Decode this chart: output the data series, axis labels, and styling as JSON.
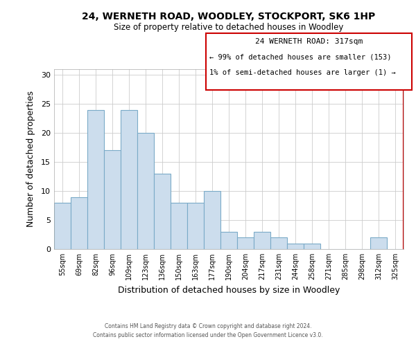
{
  "title": "24, WERNETH ROAD, WOODLEY, STOCKPORT, SK6 1HP",
  "subtitle": "Size of property relative to detached houses in Woodley",
  "xlabel": "Distribution of detached houses by size in Woodley",
  "ylabel": "Number of detached properties",
  "bar_labels": [
    "55sqm",
    "69sqm",
    "82sqm",
    "96sqm",
    "109sqm",
    "123sqm",
    "136sqm",
    "150sqm",
    "163sqm",
    "177sqm",
    "190sqm",
    "204sqm",
    "217sqm",
    "231sqm",
    "244sqm",
    "258sqm",
    "271sqm",
    "285sqm",
    "298sqm",
    "312sqm",
    "325sqm"
  ],
  "bar_values": [
    8,
    9,
    24,
    17,
    24,
    20,
    13,
    8,
    8,
    10,
    3,
    2,
    3,
    2,
    1,
    1,
    0,
    0,
    0,
    2,
    0
  ],
  "bar_color": "#ccdded",
  "bar_edge_color": "#7aaac8",
  "highlight_line_color": "#cc0000",
  "annotation_title": "24 WERNETH ROAD: 317sqm",
  "annotation_line1": "← 99% of detached houses are smaller (153)",
  "annotation_line2": "1% of semi-detached houses are larger (1) →",
  "annotation_box_color": "#cc0000",
  "ylim": [
    0,
    31
  ],
  "yticks": [
    0,
    5,
    10,
    15,
    20,
    25,
    30
  ],
  "footer1": "Contains HM Land Registry data © Crown copyright and database right 2024.",
  "footer2": "Contains public sector information licensed under the Open Government Licence v3.0.",
  "background_color": "#ffffff",
  "grid_color": "#cccccc"
}
